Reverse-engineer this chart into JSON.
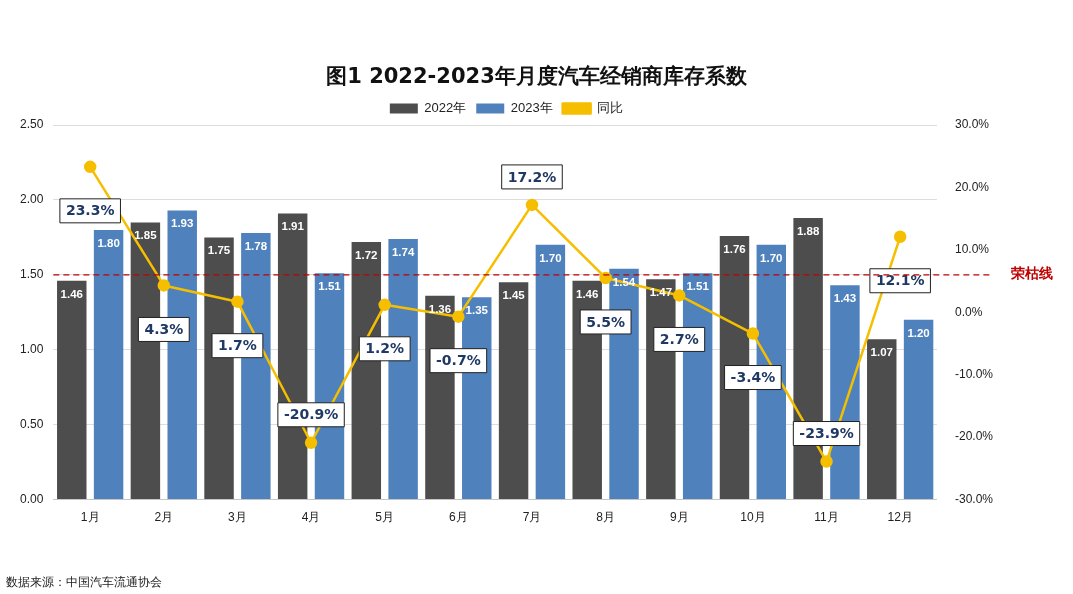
{
  "chart_data": {
    "type": "bar",
    "title": "图1  2022-2023年月度汽车经销商库存系数",
    "categories": [
      "1月",
      "2月",
      "3月",
      "4月",
      "5月",
      "6月",
      "7月",
      "8月",
      "9月",
      "10月",
      "11月",
      "12月"
    ],
    "series": [
      {
        "name": "2022年",
        "type": "bar",
        "color": "#4d4d4d",
        "values": [
          1.46,
          1.85,
          1.75,
          1.91,
          1.72,
          1.36,
          1.45,
          1.46,
          1.47,
          1.76,
          1.88,
          1.07
        ],
        "value_labels": [
          "1.46",
          "1.85",
          "1.75",
          "1.91",
          "1.72",
          "1.36",
          "1.45",
          "1.46",
          "1.47",
          "1.76",
          "1.88",
          "1.07"
        ]
      },
      {
        "name": "2023年",
        "type": "bar",
        "color": "#4f81bd",
        "values": [
          1.8,
          1.93,
          1.78,
          1.51,
          1.74,
          1.35,
          1.7,
          1.54,
          1.51,
          1.7,
          1.43,
          1.2
        ],
        "value_labels": [
          "1.80",
          "1.93",
          "1.78",
          "1.51",
          "1.74",
          "1.35",
          "1.70",
          "1.54",
          "1.51",
          "1.70",
          "1.43",
          "1.20"
        ]
      },
      {
        "name": "同比",
        "type": "line",
        "axis": "y2",
        "color": "#f5bf00",
        "values": [
          23.3,
          4.3,
          1.7,
          -20.9,
          1.2,
          -0.7,
          17.2,
          5.5,
          2.7,
          -3.4,
          -23.9,
          12.1
        ],
        "value_labels": [
          "23.3%",
          "4.3%",
          "1.7%",
          "-20.9%",
          "1.2%",
          "-0.7%",
          "17.2%",
          "5.5%",
          "2.7%",
          "-3.4%",
          "-23.9%",
          "12.1%"
        ]
      }
    ],
    "ylim": [
      0,
      2.5
    ],
    "yticks": [
      {
        "value": 0,
        "label": "0.00"
      },
      {
        "value": 0.5,
        "label": "0.50"
      },
      {
        "value": 1,
        "label": "1.00"
      },
      {
        "value": 1.5,
        "label": "1.50"
      },
      {
        "value": 2,
        "label": "2.00"
      },
      {
        "value": 2.5,
        "label": "2.50"
      }
    ],
    "y2lim": [
      -30,
      30
    ],
    "y2ticks": [
      {
        "value": -30,
        "label": "-30.0%"
      },
      {
        "value": -20,
        "label": "-20.0%"
      },
      {
        "value": -10,
        "label": "-10.0%"
      },
      {
        "value": 0,
        "label": "0.0%"
      },
      {
        "value": 10,
        "label": "10.0%"
      },
      {
        "value": 20,
        "label": "20.0%"
      },
      {
        "value": 30,
        "label": "30.0%"
      }
    ],
    "ref_lines": [
      {
        "axis": "y",
        "value": 1.5,
        "label": "荣枯线",
        "color": "#c00000",
        "line_style": "dashed"
      }
    ],
    "grid": "y",
    "legend": "top",
    "marker": "circle",
    "annotations": [
      "数据来源：中国汽车流通协会"
    ]
  }
}
